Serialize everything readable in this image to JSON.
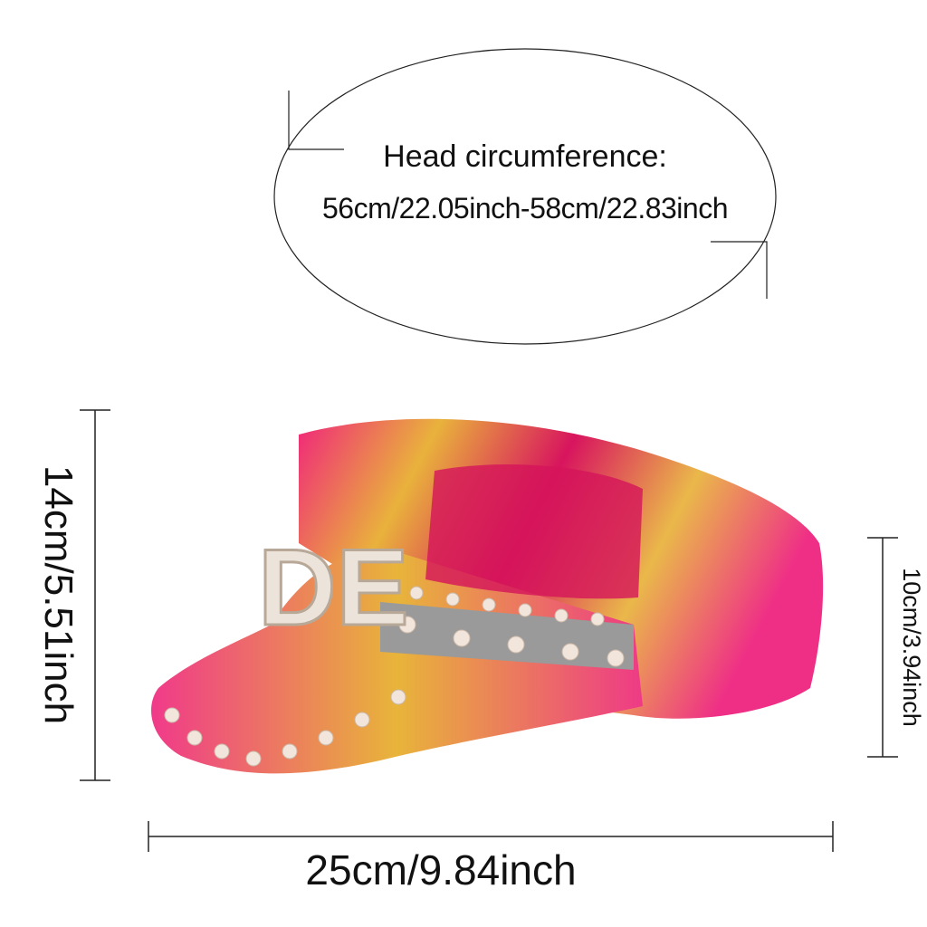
{
  "circumference": {
    "label": "Head circumference:",
    "value": "56cm/22.05inch-58cm/22.83inch"
  },
  "dimensions": {
    "height": "14cm/5.51inch",
    "crown_height": "10cm/3.94inch",
    "length": "25cm/9.84inch"
  },
  "hat": {
    "lettering": "DE",
    "colors": {
      "pink": "#e8186e",
      "gold": "#e8b43a",
      "pearl": "#f2e6dc",
      "rhinestone": "#9a9a9a"
    }
  }
}
